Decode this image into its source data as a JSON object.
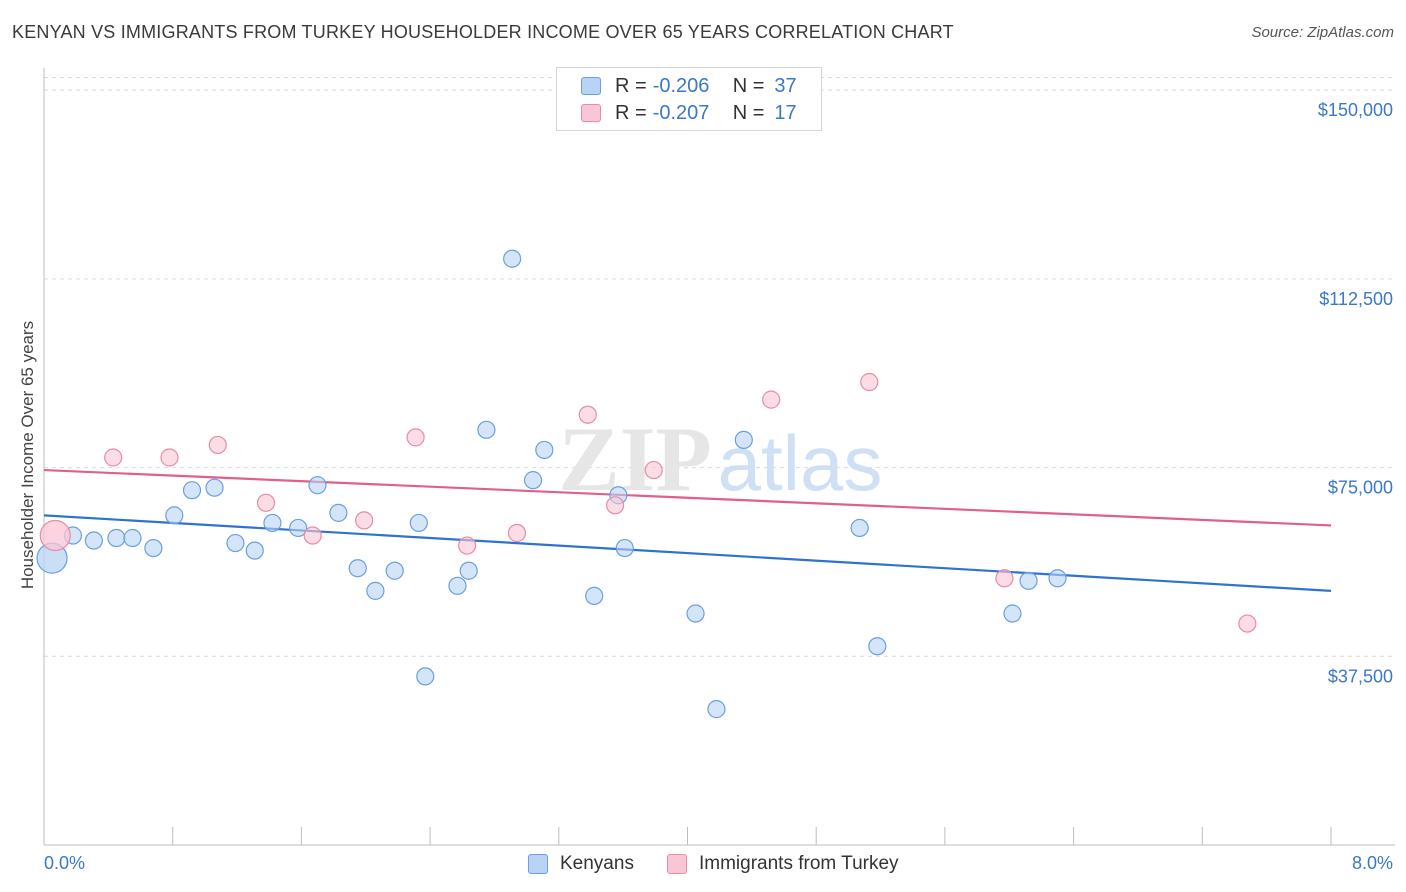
{
  "title": "KENYAN VS IMMIGRANTS FROM TURKEY HOUSEHOLDER INCOME OVER 65 YEARS CORRELATION CHART",
  "source": "Source: ZipAtlas.com",
  "watermark": {
    "zip": "ZIP",
    "atlas": "atlas"
  },
  "colors": {
    "kenyan_fill": "#b8d3f3",
    "kenyan_stroke": "#6a9fe0",
    "kenyan_line": "#2e72d2",
    "turkey_fill": "#f9c6d5",
    "turkey_stroke": "#e98aa8",
    "turkey_line": "#e0608a",
    "accent_text": "#3b78c9",
    "grid": "#d9d9d9"
  },
  "legend": {
    "rows": [
      {
        "r_label": "R =",
        "r_value": "-0.206",
        "n_label": "N =",
        "n_value": "37"
      },
      {
        "r_label": "R =",
        "r_value": "-0.207",
        "n_label": "N =",
        "n_value": "17"
      }
    ]
  },
  "bottom_legend": {
    "kenyans": "Kenyans",
    "turkey": "Immigrants from Turkey"
  },
  "chart_data": {
    "type": "scatter",
    "title": "KENYAN VS IMMIGRANTS FROM TURKEY HOUSEHOLDER INCOME OVER 65 YEARS CORRELATION CHART",
    "xlabel": "",
    "ylabel": "Householder Income Over 65 years",
    "x_tick_labels": [
      "0.0%",
      "8.0%"
    ],
    "y_tick_labels": [
      "$150,000",
      "$112,500",
      "$75,000",
      "$37,500"
    ],
    "y_ticks": [
      150000,
      112500,
      75000,
      37500
    ],
    "xlim": [
      0,
      8
    ],
    "ylim": [
      0,
      154000
    ],
    "grid": true,
    "series": [
      {
        "name": "Kenyans",
        "r": -0.206,
        "n": 37,
        "trend": {
          "x": [
            0,
            8
          ],
          "y": [
            65500,
            50500
          ]
        },
        "points": [
          {
            "x": 0.05,
            "y": 57000,
            "big": true
          },
          {
            "x": 0.18,
            "y": 61500
          },
          {
            "x": 0.31,
            "y": 60500
          },
          {
            "x": 0.45,
            "y": 61000
          },
          {
            "x": 0.55,
            "y": 61000
          },
          {
            "x": 0.68,
            "y": 59000
          },
          {
            "x": 0.81,
            "y": 65500
          },
          {
            "x": 0.92,
            "y": 70500
          },
          {
            "x": 1.06,
            "y": 71000
          },
          {
            "x": 1.19,
            "y": 60000
          },
          {
            "x": 1.31,
            "y": 58500
          },
          {
            "x": 1.42,
            "y": 64000
          },
          {
            "x": 1.58,
            "y": 63000
          },
          {
            "x": 1.7,
            "y": 71500
          },
          {
            "x": 1.83,
            "y": 66000
          },
          {
            "x": 1.95,
            "y": 55000
          },
          {
            "x": 2.06,
            "y": 50500
          },
          {
            "x": 2.18,
            "y": 54500
          },
          {
            "x": 2.33,
            "y": 64000
          },
          {
            "x": 2.37,
            "y": 33500
          },
          {
            "x": 2.57,
            "y": 51500
          },
          {
            "x": 2.64,
            "y": 54500
          },
          {
            "x": 2.75,
            "y": 82500
          },
          {
            "x": 2.91,
            "y": 116500
          },
          {
            "x": 3.04,
            "y": 72500
          },
          {
            "x": 3.11,
            "y": 78500
          },
          {
            "x": 3.42,
            "y": 49500
          },
          {
            "x": 3.57,
            "y": 69500
          },
          {
            "x": 3.61,
            "y": 59000
          },
          {
            "x": 4.05,
            "y": 46000
          },
          {
            "x": 4.18,
            "y": 27000
          },
          {
            "x": 4.35,
            "y": 80500
          },
          {
            "x": 5.07,
            "y": 63000
          },
          {
            "x": 5.18,
            "y": 39500
          },
          {
            "x": 6.02,
            "y": 46000
          },
          {
            "x": 6.12,
            "y": 52500
          },
          {
            "x": 6.3,
            "y": 53000
          }
        ]
      },
      {
        "name": "Immigrants from Turkey",
        "r": -0.207,
        "n": 17,
        "trend": {
          "x": [
            0,
            8
          ],
          "y": [
            74500,
            63500
          ]
        },
        "points": [
          {
            "x": 0.07,
            "y": 61500,
            "big": true
          },
          {
            "x": 0.43,
            "y": 77000
          },
          {
            "x": 0.78,
            "y": 77000
          },
          {
            "x": 1.08,
            "y": 79500
          },
          {
            "x": 1.38,
            "y": 68000
          },
          {
            "x": 1.67,
            "y": 61500
          },
          {
            "x": 1.99,
            "y": 64500
          },
          {
            "x": 2.31,
            "y": 81000
          },
          {
            "x": 2.63,
            "y": 59500
          },
          {
            "x": 2.94,
            "y": 62000
          },
          {
            "x": 3.38,
            "y": 85500
          },
          {
            "x": 3.55,
            "y": 67500
          },
          {
            "x": 3.79,
            "y": 74500
          },
          {
            "x": 4.52,
            "y": 88500
          },
          {
            "x": 5.13,
            "y": 92000
          },
          {
            "x": 5.97,
            "y": 53000
          },
          {
            "x": 7.48,
            "y": 44000
          }
        ]
      }
    ]
  }
}
